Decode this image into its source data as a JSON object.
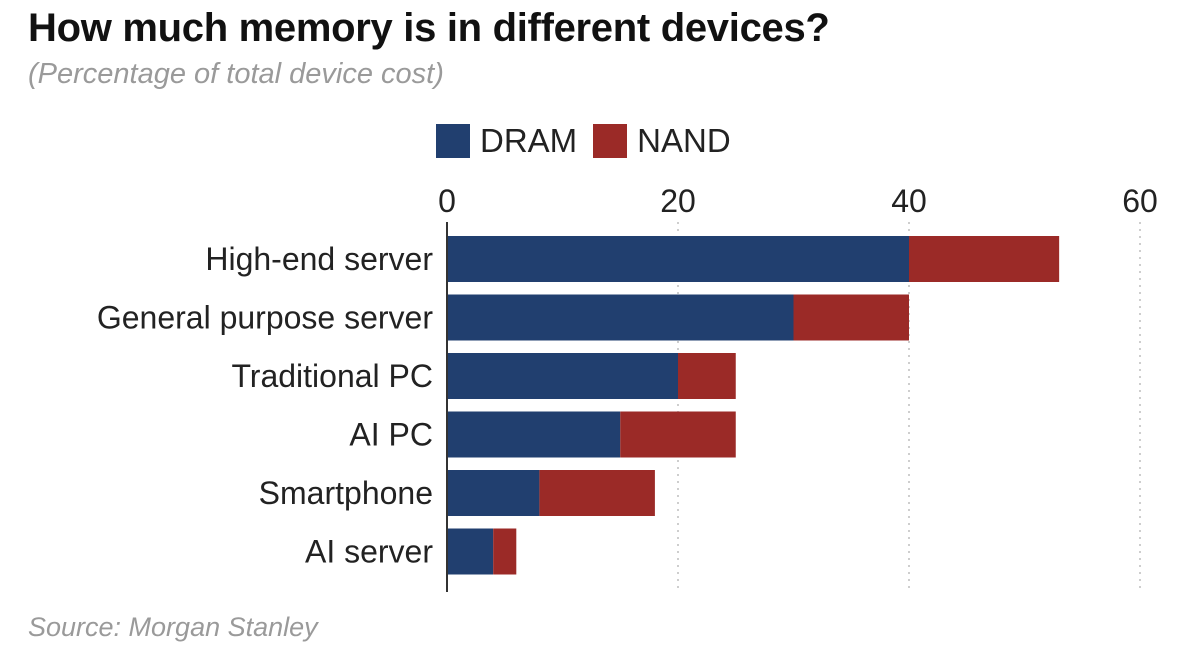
{
  "colors": {
    "dram": "#213f6f",
    "nand": "#9b2a27",
    "grid": "#bdbdbd",
    "axis": "#333333"
  },
  "chart_data": {
    "type": "bar",
    "orientation": "horizontal",
    "stacked": true,
    "title": "How much memory is in different devices?",
    "subtitle": "(Percentage of total device cost)",
    "source": "Source: Morgan Stanley",
    "categories": [
      "High-end server",
      "General purpose server",
      "Traditional PC",
      "AI PC",
      "Smartphone",
      "AI server"
    ],
    "series": [
      {
        "name": "DRAM",
        "values": [
          40,
          30,
          20,
          15,
          8,
          4
        ]
      },
      {
        "name": "NAND",
        "values": [
          13,
          10,
          5,
          10,
          10,
          2
        ]
      }
    ],
    "xlim": [
      0,
      60
    ],
    "xticks": [
      0,
      20,
      40,
      60
    ],
    "grid": true,
    "legend_position": "top"
  }
}
